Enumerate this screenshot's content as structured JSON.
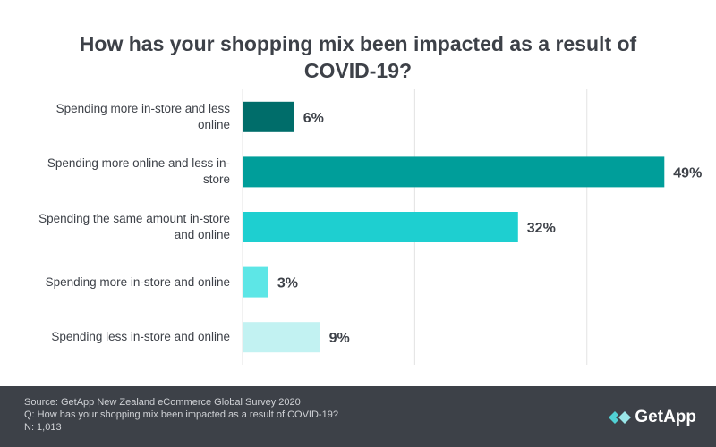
{
  "chart_data": {
    "type": "bar",
    "title": "How has your shopping mix been impacted as a result of COVID-19?",
    "categories": [
      "Spending more in-store and less online",
      "Spending more online and less in-store",
      "Spending the same amount in-store and online",
      "Spending more in-store and online",
      "Spending less in-store and online"
    ],
    "values": [
      6,
      49,
      32,
      3,
      9
    ],
    "value_labels": [
      "6%",
      "49%",
      "32%",
      "3%",
      "9%"
    ],
    "colors": [
      "#006d6a",
      "#009e9a",
      "#1ecfd0",
      "#5de6e6",
      "#c2f2f2"
    ],
    "xlim": [
      0,
      55
    ],
    "xticks": [
      0,
      20,
      40
    ],
    "grid": true
  },
  "footer": {
    "source": "Source: GetApp New Zealand eCommerce Global Survey 2020",
    "question": "Q: How has your shopping mix been impacted as a result of COVID-19?",
    "n": "N: 1,013",
    "logo": "GetApp"
  }
}
